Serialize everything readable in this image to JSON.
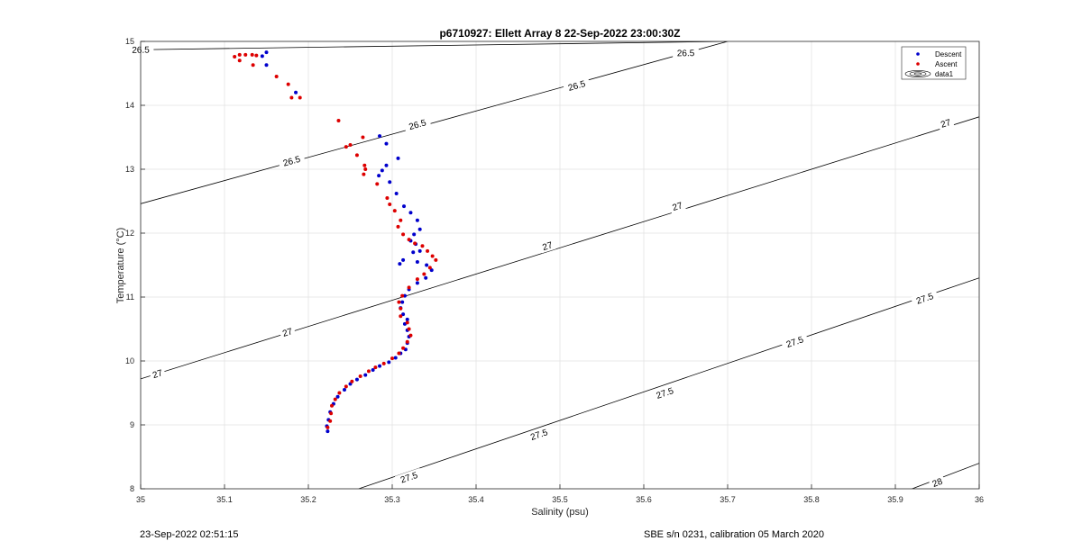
{
  "footer": {
    "timestamp": "23-Sep-2022 02:51:15",
    "calibration": "SBE s/n 0231, calibration 05 March 2020"
  },
  "chart_data": {
    "type": "scatter",
    "title": "p6710927: Ellett Array 8 22-Sep-2022 23:00:30Z",
    "xlabel": "Salinity (psu)",
    "ylabel": "Temperature (°C)",
    "xlim": [
      35,
      36
    ],
    "ylim": [
      8,
      15
    ],
    "xticks": [
      "35",
      "35.1",
      "35.2",
      "35.3",
      "35.4",
      "35.5",
      "35.6",
      "35.7",
      "35.8",
      "35.9",
      "36"
    ],
    "yticks": [
      "8",
      "9",
      "10",
      "11",
      "12",
      "13",
      "14",
      "15"
    ],
    "grid": true,
    "legend_position": "top-right",
    "legend": [
      "Descent",
      "Ascent",
      "data1"
    ],
    "colors": {
      "descent": "#0000cc",
      "ascent": "#dd0000",
      "contour": "#000000"
    },
    "contours": [
      {
        "level": 26.5,
        "points": [
          [
            35.0,
            14.87
          ],
          [
            35.7,
            15.0
          ]
        ],
        "labels": [
          "26.5",
          "26.5"
        ],
        "label_points": [
          [
            35.0,
            14.87
          ],
          [
            35.65,
            14.82
          ]
        ]
      },
      {
        "level": 26.5,
        "points": [
          [
            35.0,
            12.46
          ],
          [
            35.7,
            15.0
          ]
        ],
        "labels": [
          "26.5",
          "26.5",
          "26.5"
        ],
        "label_points": [
          [
            35.18,
            13.13
          ],
          [
            35.33,
            13.7
          ],
          [
            35.52,
            14.31
          ]
        ]
      },
      {
        "level": 27,
        "points": [
          [
            35.0,
            9.72
          ],
          [
            36.0,
            13.82
          ]
        ],
        "labels": [
          "27",
          "27",
          "27",
          "27",
          "27"
        ],
        "label_points": [
          [
            35.02,
            9.8
          ],
          [
            35.175,
            10.45
          ],
          [
            35.485,
            11.8
          ],
          [
            35.64,
            12.42
          ],
          [
            35.96,
            13.72
          ]
        ]
      },
      {
        "level": 27.5,
        "points": [
          [
            35.26,
            8.0
          ],
          [
            36.0,
            11.3
          ]
        ],
        "labels": [
          "27.5",
          "27.5",
          "27.5",
          "27.5",
          "27.5"
        ],
        "label_points": [
          [
            35.32,
            8.18
          ],
          [
            35.475,
            8.85
          ],
          [
            35.625,
            9.5
          ],
          [
            35.78,
            10.3
          ],
          [
            35.935,
            10.98
          ]
        ]
      },
      {
        "level": 28,
        "points": [
          [
            35.9,
            7.9
          ],
          [
            36.0,
            8.4
          ]
        ],
        "labels": [
          "28"
        ],
        "label_points": [
          [
            35.95,
            8.1
          ]
        ]
      }
    ],
    "series": [
      {
        "name": "Descent",
        "points": [
          [
            35.15,
            14.83
          ],
          [
            35.145,
            14.77
          ],
          [
            35.15,
            14.63
          ],
          [
            35.185,
            14.2
          ],
          [
            35.285,
            13.52
          ],
          [
            35.293,
            13.4
          ],
          [
            35.307,
            13.17
          ],
          [
            35.293,
            13.06
          ],
          [
            35.288,
            12.98
          ],
          [
            35.284,
            12.9
          ],
          [
            35.297,
            12.8
          ],
          [
            35.305,
            12.62
          ],
          [
            35.314,
            12.42
          ],
          [
            35.322,
            12.32
          ],
          [
            35.33,
            12.2
          ],
          [
            35.333,
            12.06
          ],
          [
            35.326,
            11.98
          ],
          [
            35.322,
            11.88
          ],
          [
            35.328,
            11.83
          ],
          [
            35.333,
            11.72
          ],
          [
            35.325,
            11.7
          ],
          [
            35.313,
            11.58
          ],
          [
            35.309,
            11.52
          ],
          [
            35.33,
            11.55
          ],
          [
            35.341,
            11.5
          ],
          [
            35.347,
            11.42
          ],
          [
            35.34,
            11.3
          ],
          [
            35.33,
            11.22
          ],
          [
            35.32,
            11.12
          ],
          [
            35.315,
            11.02
          ],
          [
            35.312,
            10.92
          ],
          [
            35.31,
            10.83
          ],
          [
            35.313,
            10.73
          ],
          [
            35.318,
            10.65
          ],
          [
            35.315,
            10.58
          ],
          [
            35.318,
            10.48
          ],
          [
            35.32,
            10.38
          ],
          [
            35.318,
            10.28
          ],
          [
            35.316,
            10.18
          ],
          [
            35.31,
            10.12
          ],
          [
            35.304,
            10.05
          ],
          [
            35.296,
            9.98
          ],
          [
            35.285,
            9.92
          ],
          [
            35.277,
            9.86
          ],
          [
            35.268,
            9.78
          ],
          [
            35.258,
            9.71
          ],
          [
            35.25,
            9.64
          ],
          [
            35.243,
            9.55
          ],
          [
            35.235,
            9.44
          ],
          [
            35.23,
            9.33
          ],
          [
            35.226,
            9.2
          ],
          [
            35.224,
            9.08
          ],
          [
            35.222,
            8.98
          ],
          [
            35.223,
            8.9
          ]
        ]
      },
      {
        "name": "Ascent",
        "points": [
          [
            35.112,
            14.76
          ],
          [
            35.118,
            14.79
          ],
          [
            35.125,
            14.79
          ],
          [
            35.133,
            14.79
          ],
          [
            35.138,
            14.78
          ],
          [
            35.118,
            14.7
          ],
          [
            35.134,
            14.63
          ],
          [
            35.162,
            14.45
          ],
          [
            35.176,
            14.33
          ],
          [
            35.18,
            14.12
          ],
          [
            35.19,
            14.12
          ],
          [
            35.236,
            13.76
          ],
          [
            35.265,
            13.5
          ],
          [
            35.25,
            13.38
          ],
          [
            35.245,
            13.35
          ],
          [
            35.258,
            13.22
          ],
          [
            35.267,
            13.06
          ],
          [
            35.268,
            13.0
          ],
          [
            35.266,
            12.92
          ],
          [
            35.282,
            12.77
          ],
          [
            35.294,
            12.55
          ],
          [
            35.297,
            12.45
          ],
          [
            35.303,
            12.35
          ],
          [
            35.31,
            12.2
          ],
          [
            35.307,
            12.1
          ],
          [
            35.313,
            11.98
          ],
          [
            35.32,
            11.9
          ],
          [
            35.327,
            11.84
          ],
          [
            35.336,
            11.8
          ],
          [
            35.342,
            11.72
          ],
          [
            35.348,
            11.64
          ],
          [
            35.352,
            11.58
          ],
          [
            35.345,
            11.46
          ],
          [
            35.338,
            11.36
          ],
          [
            35.33,
            11.28
          ],
          [
            35.32,
            11.15
          ],
          [
            35.312,
            11.02
          ],
          [
            35.308,
            10.92
          ],
          [
            35.31,
            10.82
          ],
          [
            35.31,
            10.7
          ],
          [
            35.318,
            10.6
          ],
          [
            35.32,
            10.5
          ],
          [
            35.322,
            10.4
          ],
          [
            35.318,
            10.3
          ],
          [
            35.313,
            10.2
          ],
          [
            35.308,
            10.12
          ],
          [
            35.3,
            10.04
          ],
          [
            35.29,
            9.96
          ],
          [
            35.28,
            9.9
          ],
          [
            35.272,
            9.84
          ],
          [
            35.262,
            9.76
          ],
          [
            35.252,
            9.68
          ],
          [
            35.245,
            9.6
          ],
          [
            35.237,
            9.5
          ],
          [
            35.232,
            9.4
          ],
          [
            35.228,
            9.3
          ],
          [
            35.227,
            9.18
          ],
          [
            35.226,
            9.06
          ],
          [
            35.223,
            8.96
          ]
        ]
      }
    ]
  }
}
